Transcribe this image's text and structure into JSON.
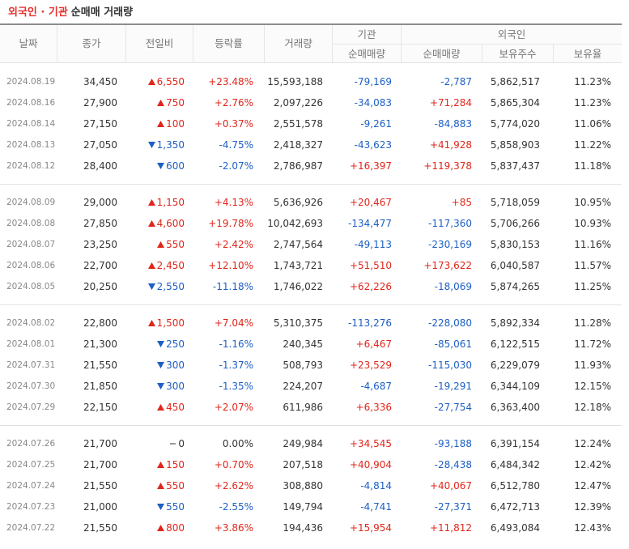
{
  "title": {
    "highlight": "외국인 · 기관",
    "rest": "순매매 거래량"
  },
  "header": {
    "row1": [
      "날짜",
      "종가",
      "전일비",
      "등락률",
      "거래량",
      "기관",
      "외국인"
    ],
    "row2": [
      "순매매량",
      "순매매량",
      "보유주수",
      "보유율"
    ]
  },
  "table": {
    "groups": [
      [
        [
          "2024.08.19",
          "34,450",
          "6,550",
          "+23.48%",
          "15,593,188",
          "-79,169",
          "-2,787",
          "5,862,517",
          "11.23%"
        ],
        [
          "2024.08.16",
          "27,900",
          "750",
          "+2.76%",
          "2,097,226",
          "-34,083",
          "+71,284",
          "5,865,304",
          "11.23%"
        ],
        [
          "2024.08.14",
          "27,150",
          "100",
          "+0.37%",
          "2,551,578",
          "-9,261",
          "-84,883",
          "5,774,020",
          "11.06%"
        ],
        [
          "2024.08.13",
          "27,050",
          "1,350",
          "-4.75%",
          "2,418,327",
          "-43,623",
          "+41,928",
          "5,858,903",
          "11.22%"
        ],
        [
          "2024.08.12",
          "28,400",
          "600",
          "-2.07%",
          "2,786,987",
          "+16,397",
          "+119,378",
          "5,837,437",
          "11.18%"
        ]
      ],
      [
        [
          "2024.08.09",
          "29,000",
          "1,150",
          "+4.13%",
          "5,636,926",
          "+20,467",
          "+85",
          "5,718,059",
          "10.95%"
        ],
        [
          "2024.08.08",
          "27,850",
          "4,600",
          "+19.78%",
          "10,042,693",
          "-134,477",
          "-117,360",
          "5,706,266",
          "10.93%"
        ],
        [
          "2024.08.07",
          "23,250",
          "550",
          "+2.42%",
          "2,747,564",
          "-49,113",
          "-230,169",
          "5,830,153",
          "11.16%"
        ],
        [
          "2024.08.06",
          "22,700",
          "2,450",
          "+12.10%",
          "1,743,721",
          "+51,510",
          "+173,622",
          "6,040,587",
          "11.57%"
        ],
        [
          "2024.08.05",
          "20,250",
          "2,550",
          "-11.18%",
          "1,746,022",
          "+62,226",
          "-18,069",
          "5,874,265",
          "11.25%"
        ]
      ],
      [
        [
          "2024.08.02",
          "22,800",
          "1,500",
          "+7.04%",
          "5,310,375",
          "-113,276",
          "-228,080",
          "5,892,334",
          "11.28%"
        ],
        [
          "2024.08.01",
          "21,300",
          "250",
          "-1.16%",
          "240,345",
          "+6,467",
          "-85,061",
          "6,122,515",
          "11.72%"
        ],
        [
          "2024.07.31",
          "21,550",
          "300",
          "-1.37%",
          "508,793",
          "+23,529",
          "-115,030",
          "6,229,079",
          "11.93%"
        ],
        [
          "2024.07.30",
          "21,850",
          "300",
          "-1.35%",
          "224,207",
          "-4,687",
          "-19,291",
          "6,344,109",
          "12.15%"
        ],
        [
          "2024.07.29",
          "22,150",
          "450",
          "+2.07%",
          "611,986",
          "+6,336",
          "-27,754",
          "6,363,400",
          "12.18%"
        ]
      ],
      [
        [
          "2024.07.26",
          "21,700",
          "0",
          "0.00%",
          "249,984",
          "+34,545",
          "-93,188",
          "6,391,154",
          "12.24%"
        ],
        [
          "2024.07.25",
          "21,700",
          "150",
          "+0.70%",
          "207,518",
          "+40,904",
          "-28,438",
          "6,484,342",
          "12.42%"
        ],
        [
          "2024.07.24",
          "21,550",
          "550",
          "+2.62%",
          "308,880",
          "-4,814",
          "+40,067",
          "6,512,780",
          "12.47%"
        ],
        [
          "2024.07.23",
          "21,000",
          "550",
          "-2.55%",
          "149,794",
          "-4,741",
          "-27,371",
          "6,472,713",
          "12.39%"
        ],
        [
          "2024.07.22",
          "21,550",
          "800",
          "+3.86%",
          "194,436",
          "+15,954",
          "+11,812",
          "6,493,084",
          "12.43%"
        ]
      ]
    ]
  }
}
